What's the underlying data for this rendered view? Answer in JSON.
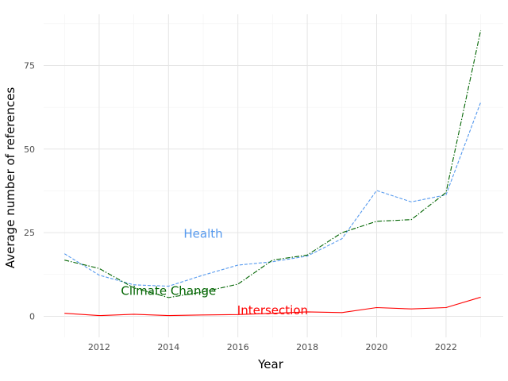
{
  "chart_data": {
    "type": "line",
    "title": "",
    "xlabel": "Year",
    "ylabel": "Average number of references",
    "x": [
      2011,
      2012,
      2013,
      2014,
      2015,
      2016,
      2017,
      2018,
      2019,
      2020,
      2021,
      2022,
      2023
    ],
    "xlim": [
      2010.4,
      2023.65
    ],
    "ylim": [
      -6.3,
      90.3
    ],
    "x_ticks": [
      2012,
      2014,
      2016,
      2018,
      2020,
      2022
    ],
    "x_tick_labels": [
      "2012",
      "2014",
      "2016",
      "2018",
      "2020",
      "2022"
    ],
    "y_ticks": [
      0,
      25,
      50,
      75
    ],
    "y_tick_labels": [
      "0",
      "25",
      "50",
      "75"
    ],
    "grid": true,
    "series": [
      {
        "name": "Health",
        "color": "#5599ee",
        "dash": "dashed",
        "values": [
          18.7,
          12.3,
          9.4,
          9.0,
          12.3,
          15.3,
          16.3,
          18.0,
          23.2,
          37.6,
          34.2,
          36.3,
          64.0
        ],
        "label_pos": [
          2015.0,
          24.5
        ]
      },
      {
        "name": "Climate Change",
        "color": "#006400",
        "dash": "dashdot",
        "values": [
          16.8,
          14.3,
          8.5,
          5.6,
          7.3,
          9.6,
          16.8,
          18.3,
          25.0,
          28.4,
          28.9,
          37.0,
          85.5
        ],
        "label_pos": [
          2014.0,
          7.5
        ]
      },
      {
        "name": "Intersection",
        "color": "#ff0000",
        "dash": "solid",
        "values": [
          0.9,
          0.2,
          0.6,
          0.2,
          0.4,
          0.5,
          0.9,
          1.3,
          1.1,
          2.6,
          2.2,
          2.6,
          5.7
        ],
        "label_pos": [
          2017.0,
          1.7
        ]
      }
    ]
  }
}
